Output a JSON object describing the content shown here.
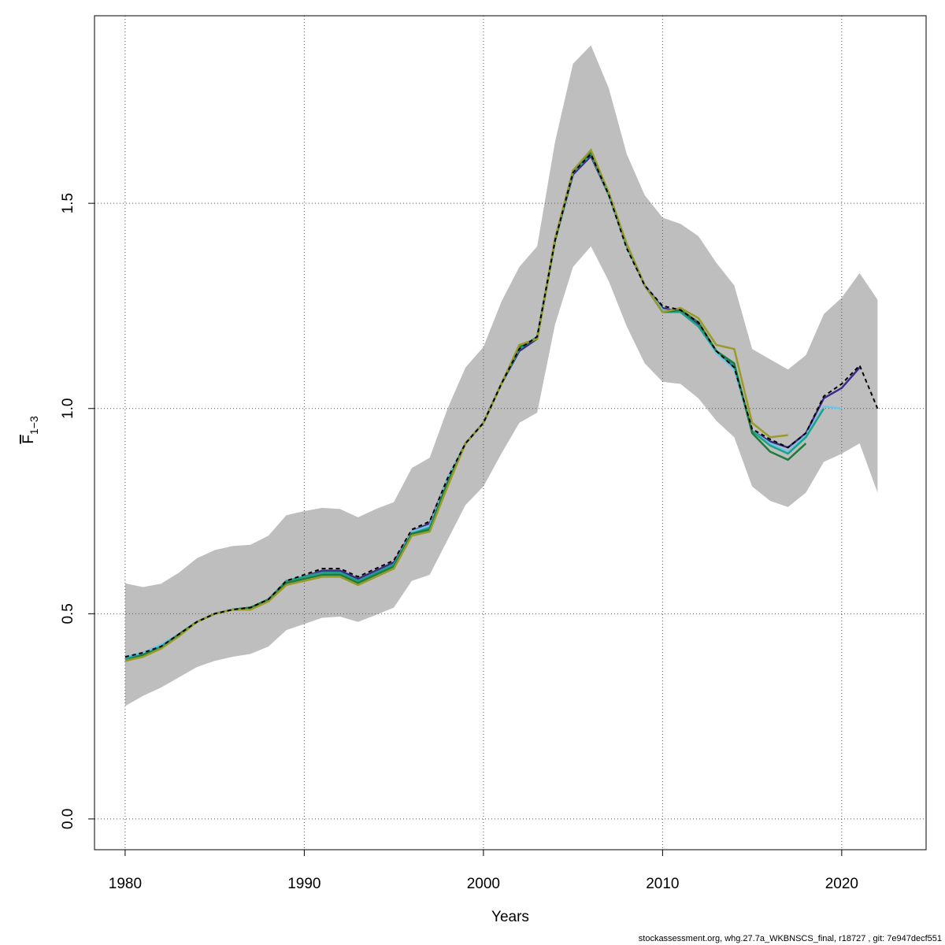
{
  "chart_data": {
    "type": "line",
    "xlabel": "Years",
    "ylabel": "F",
    "ylabel_subscript": "1−3",
    "x": [
      1980,
      1981,
      1982,
      1983,
      1984,
      1985,
      1986,
      1987,
      1988,
      1989,
      1990,
      1991,
      1992,
      1993,
      1994,
      1995,
      1996,
      1997,
      1998,
      1999,
      2000,
      2001,
      2002,
      2003,
      2004,
      2005,
      2006,
      2007,
      2008,
      2009,
      2010,
      2011,
      2012,
      2013,
      2014,
      2015,
      2016,
      2017,
      2018,
      2019,
      2020,
      2021,
      2022
    ],
    "xlim": [
      1978.29,
      2024.71
    ],
    "ylim": [
      -0.075,
      1.957
    ],
    "xticks": [
      1980,
      1990,
      2000,
      2010,
      2020
    ],
    "yticks": [
      {
        "value": 0,
        "label": "0.0"
      },
      0.5,
      {
        "value": 1,
        "label": "1.0"
      },
      1.5
    ],
    "grid": true,
    "band": {
      "color": "#bebebe",
      "upper": [
        0.574,
        0.565,
        0.573,
        0.6,
        0.635,
        0.655,
        0.665,
        0.668,
        0.69,
        0.74,
        0.75,
        0.758,
        0.755,
        0.735,
        0.755,
        0.772,
        0.855,
        0.88,
        1.0,
        1.1,
        1.15,
        1.26,
        1.345,
        1.395,
        1.65,
        1.84,
        1.885,
        1.78,
        1.62,
        1.52,
        1.465,
        1.45,
        1.42,
        1.355,
        1.3,
        1.145,
        1.12,
        1.095,
        1.13,
        1.23,
        1.27,
        1.33,
        1.265
      ],
      "lower": [
        0.275,
        0.3,
        0.32,
        0.345,
        0.37,
        0.385,
        0.395,
        0.402,
        0.42,
        0.46,
        0.475,
        0.49,
        0.493,
        0.48,
        0.497,
        0.515,
        0.58,
        0.595,
        0.68,
        0.765,
        0.81,
        0.89,
        0.965,
        0.99,
        1.205,
        1.345,
        1.395,
        1.31,
        1.2,
        1.11,
        1.065,
        1.06,
        1.025,
        0.97,
        0.93,
        0.81,
        0.775,
        0.76,
        0.795,
        0.87,
        0.89,
        0.915,
        0.795
      ]
    },
    "series": [
      {
        "color": "#3b2a8a",
        "values": [
          0.39,
          0.405,
          0.42,
          0.45,
          0.48,
          0.5,
          0.51,
          0.515,
          0.535,
          0.58,
          0.59,
          0.605,
          0.605,
          0.585,
          0.605,
          0.625,
          0.7,
          0.72,
          0.83,
          0.915,
          0.965,
          1.06,
          1.14,
          1.17,
          1.41,
          1.57,
          1.615,
          1.52,
          1.4,
          1.3,
          1.245,
          1.235,
          1.205,
          1.14,
          1.1,
          0.945,
          0.92,
          0.905,
          0.94,
          1.025,
          1.05,
          1.1,
          null
        ]
      },
      {
        "color": "#6ec6e6",
        "values": [
          0.395,
          0.405,
          0.425,
          0.45,
          0.48,
          0.5,
          0.51,
          0.515,
          0.535,
          0.58,
          0.59,
          0.6,
          0.6,
          0.58,
          0.6,
          0.62,
          0.7,
          0.715,
          0.83,
          0.915,
          0.965,
          1.06,
          1.145,
          1.175,
          1.41,
          1.575,
          1.62,
          1.52,
          1.4,
          1.3,
          1.24,
          1.235,
          1.2,
          1.135,
          1.095,
          0.945,
          0.915,
          0.895,
          0.935,
          1.005,
          1.0,
          null,
          null
        ]
      },
      {
        "color": "#1fa187",
        "values": [
          0.39,
          0.4,
          0.42,
          0.45,
          0.48,
          0.5,
          0.51,
          0.515,
          0.535,
          0.58,
          0.59,
          0.6,
          0.6,
          0.58,
          0.6,
          0.62,
          0.695,
          0.71,
          0.82,
          0.915,
          0.965,
          1.06,
          1.145,
          1.175,
          1.41,
          1.575,
          1.62,
          1.52,
          1.395,
          1.3,
          1.235,
          1.235,
          1.2,
          1.14,
          1.105,
          0.945,
          0.91,
          0.89,
          0.93,
          1.0,
          null,
          null,
          null
        ]
      },
      {
        "color": "#1e7b3a",
        "values": [
          0.385,
          0.4,
          0.415,
          0.45,
          0.48,
          0.5,
          0.51,
          0.515,
          0.535,
          0.575,
          0.585,
          0.595,
          0.595,
          0.575,
          0.595,
          0.615,
          0.695,
          0.705,
          0.82,
          0.915,
          0.965,
          1.06,
          1.15,
          1.17,
          1.41,
          1.58,
          1.625,
          1.525,
          1.4,
          1.3,
          1.235,
          1.24,
          1.21,
          1.14,
          1.11,
          0.94,
          0.895,
          0.875,
          0.915,
          null,
          null,
          null,
          null
        ]
      },
      {
        "color": "#9a9a2a",
        "values": [
          0.385,
          0.395,
          0.415,
          0.445,
          0.48,
          0.5,
          0.51,
          0.51,
          0.53,
          0.57,
          0.58,
          0.59,
          0.59,
          0.57,
          0.59,
          0.61,
          0.69,
          0.7,
          0.81,
          0.915,
          0.965,
          1.06,
          1.155,
          1.17,
          1.415,
          1.58,
          1.63,
          1.525,
          1.4,
          1.3,
          1.235,
          1.245,
          1.22,
          1.155,
          1.145,
          0.965,
          0.93,
          0.935,
          null,
          null,
          null,
          null,
          null
        ]
      },
      {
        "color": "#000000",
        "dashed": true,
        "values": [
          0.395,
          0.405,
          0.42,
          0.45,
          0.48,
          0.5,
          0.51,
          0.515,
          0.535,
          0.58,
          0.595,
          0.61,
          0.61,
          0.59,
          0.61,
          0.63,
          0.705,
          0.725,
          0.83,
          0.915,
          0.965,
          1.06,
          1.145,
          1.175,
          1.41,
          1.575,
          1.62,
          1.52,
          1.39,
          1.3,
          1.25,
          1.24,
          1.21,
          1.14,
          1.1,
          0.95,
          0.925,
          0.905,
          0.94,
          1.03,
          1.06,
          1.105,
          1.0
        ]
      }
    ]
  },
  "footer": "stockassessment.org, whg.27.7a_WKBNSCS_final, r18727 , git: 7e947decf551"
}
